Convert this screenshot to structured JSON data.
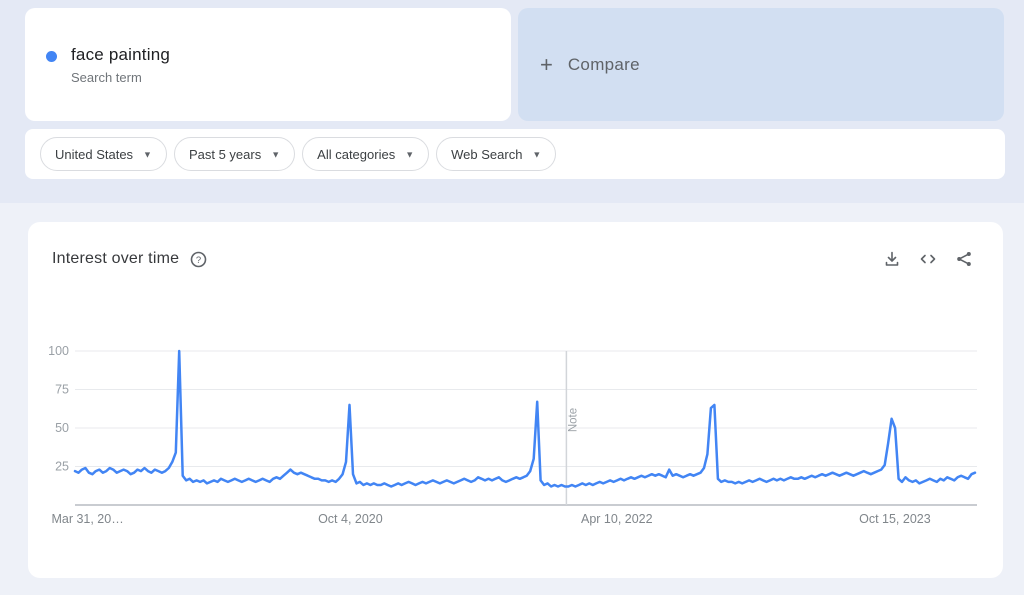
{
  "colors": {
    "accent_blue": "#4285f4",
    "compare_card_bg": "#d2dff2",
    "top_background": "#e4e9f5",
    "page_background": "#eef1f8"
  },
  "search_card": {
    "term": "face painting",
    "subtitle": "Search term",
    "dot_color": "#4285f4"
  },
  "compare_card": {
    "plus_glyph": "+",
    "label": "Compare"
  },
  "icons": {
    "caret_glyph": "▼",
    "help_glyph": "?"
  },
  "filters": [
    {
      "label": "United States"
    },
    {
      "label": "Past 5 years"
    },
    {
      "label": "All categories"
    },
    {
      "label": "Web Search"
    }
  ],
  "chart_card": {
    "title": "Interest over time"
  },
  "chart_data": {
    "type": "line",
    "title": "Interest over time",
    "ylim": [
      0,
      100
    ],
    "y_ticks": [
      100,
      75,
      50,
      25
    ],
    "x_tick_labels": [
      "Mar 31, 20…",
      "Oct 4, 2020",
      "Apr 10, 2022",
      "Oct 15, 2023"
    ],
    "x_tick_positions": [
      0.014,
      0.306,
      0.602,
      0.911
    ],
    "note_label": "Note",
    "note_position": 0.546,
    "grid": "horizontal",
    "legend_position": "none",
    "frequency": "weekly",
    "series": [
      {
        "name": "face painting",
        "color": "#4285f4",
        "values": [
          22,
          21,
          23,
          24,
          21,
          20,
          22,
          23,
          21,
          22,
          24,
          23,
          21,
          22,
          23,
          22,
          20,
          21,
          23,
          22,
          24,
          22,
          21,
          23,
          22,
          21,
          22,
          24,
          28,
          34,
          100,
          19,
          16,
          17,
          15,
          16,
          15,
          16,
          14,
          15,
          16,
          15,
          17,
          16,
          15,
          16,
          17,
          16,
          15,
          16,
          17,
          16,
          15,
          16,
          17,
          16,
          15,
          17,
          18,
          17,
          19,
          21,
          23,
          21,
          20,
          21,
          20,
          19,
          18,
          17,
          17,
          16,
          16,
          15,
          16,
          15,
          17,
          20,
          28,
          65,
          20,
          14,
          15,
          13,
          14,
          13,
          14,
          13,
          13,
          14,
          13,
          12,
          13,
          14,
          13,
          14,
          15,
          14,
          13,
          14,
          15,
          14,
          15,
          16,
          15,
          14,
          15,
          16,
          15,
          14,
          15,
          16,
          17,
          16,
          15,
          16,
          18,
          17,
          16,
          17,
          16,
          17,
          18,
          16,
          15,
          16,
          17,
          18,
          17,
          18,
          19,
          22,
          30,
          67,
          16,
          13,
          14,
          12,
          13,
          12,
          13,
          12,
          12,
          13,
          12,
          13,
          14,
          13,
          14,
          13,
          14,
          15,
          14,
          15,
          16,
          15,
          16,
          17,
          16,
          17,
          18,
          17,
          18,
          19,
          18,
          19,
          20,
          19,
          20,
          19,
          18,
          23,
          19,
          20,
          19,
          18,
          19,
          20,
          19,
          20,
          21,
          24,
          33,
          63,
          65,
          17,
          15,
          16,
          15,
          15,
          14,
          15,
          14,
          15,
          16,
          15,
          16,
          17,
          16,
          15,
          16,
          17,
          16,
          17,
          16,
          17,
          18,
          17,
          17,
          18,
          17,
          18,
          19,
          18,
          19,
          20,
          19,
          20,
          21,
          20,
          19,
          20,
          21,
          20,
          19,
          20,
          21,
          22,
          21,
          20,
          21,
          22,
          23,
          26,
          40,
          56,
          50,
          17,
          15,
          18,
          16,
          15,
          16,
          14,
          15,
          16,
          17,
          16,
          15,
          17,
          16,
          18,
          17,
          16,
          18,
          19,
          18,
          17,
          20,
          21
        ]
      }
    ]
  }
}
